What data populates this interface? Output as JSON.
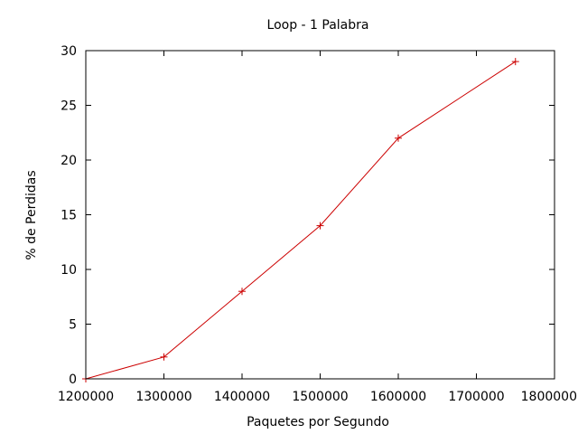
{
  "chart_data": {
    "type": "line",
    "title": "Loop - 1 Palabra",
    "xlabel": "Paquetes por Segundo",
    "ylabel": "% de Perdidas",
    "xlim": [
      1200000,
      1800000
    ],
    "ylim": [
      0,
      30
    ],
    "x_ticks": [
      1200000,
      1300000,
      1400000,
      1500000,
      1600000,
      1700000,
      1800000
    ],
    "y_ticks": [
      0,
      5,
      10,
      15,
      20,
      25,
      30
    ],
    "grid": false,
    "legend": false,
    "series": [
      {
        "color": "#cc0000",
        "marker": "plus",
        "points": [
          {
            "x": 1200000,
            "y": 0
          },
          {
            "x": 1300000,
            "y": 2
          },
          {
            "x": 1400000,
            "y": 8
          },
          {
            "x": 1500000,
            "y": 14
          },
          {
            "x": 1600000,
            "y": 22
          },
          {
            "x": 1750000,
            "y": 29
          }
        ]
      }
    ]
  }
}
